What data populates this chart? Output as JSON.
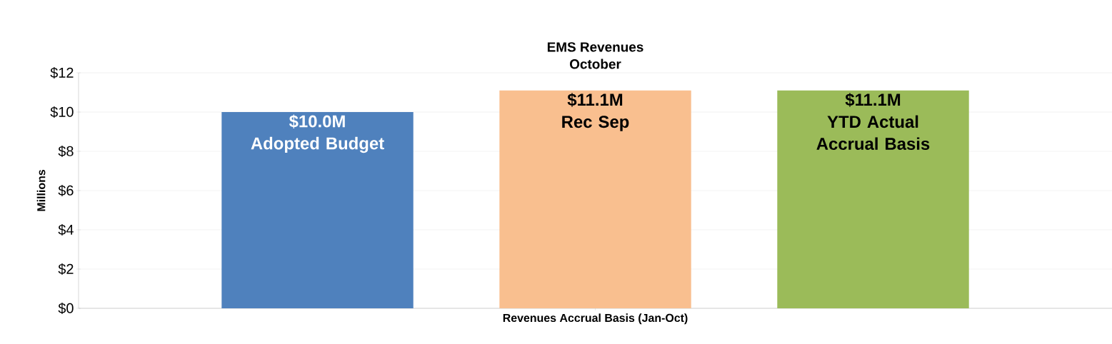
{
  "chart_data": {
    "type": "bar",
    "title": "EMS Revenues",
    "subtitle": "October",
    "xlabel": "Revenues Accrual Basis (Jan-Oct)",
    "ylabel": "Millions",
    "categories": [
      null
    ],
    "series": [
      {
        "name": "Adopted Budget",
        "color": "#4f81bd",
        "values": [
          10.0
        ],
        "value_labels": [
          "$10.0M"
        ]
      },
      {
        "name": "Rec  Sep",
        "color": "#f9bf8f",
        "values": [
          11.1
        ],
        "value_labels": [
          "$11.1M"
        ]
      },
      {
        "name": "YTD Actual Accrual Basis",
        "color": "#9bbb59",
        "values": [
          11.1
        ],
        "value_labels": [
          "$11.1M"
        ]
      }
    ],
    "ylim": [
      0,
      12
    ],
    "yticks": [
      {
        "value": 0,
        "label": "$0"
      },
      {
        "value": 2,
        "label": "$2"
      },
      {
        "value": 4,
        "label": "$4"
      },
      {
        "value": 6,
        "label": "$6"
      },
      {
        "value": 8,
        "label": "$8"
      },
      {
        "value": 10,
        "label": "$10"
      },
      {
        "value": 12,
        "label": "$12"
      }
    ],
    "grid": "y"
  }
}
